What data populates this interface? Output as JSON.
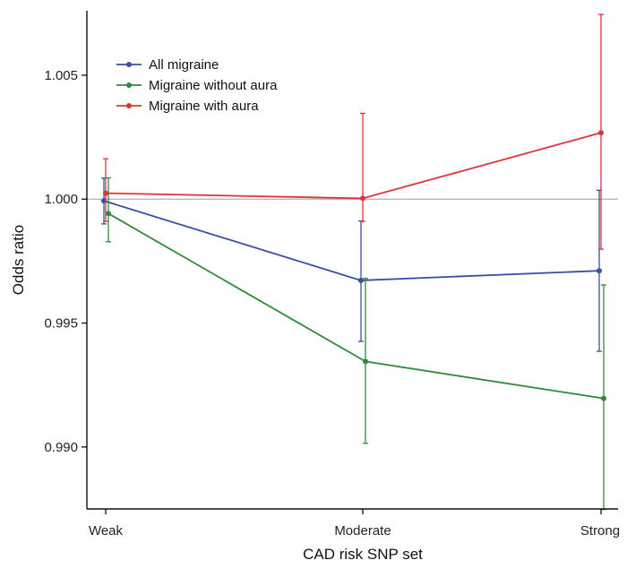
{
  "chart_data": {
    "type": "line",
    "title": "",
    "xlabel": "CAD risk SNP set",
    "ylabel": "Odds ratio",
    "categories": [
      "Weak",
      "Moderate",
      "Strong"
    ],
    "ylim": [
      0.9875,
      1.0076
    ],
    "yticks": [
      0.99,
      0.995,
      1.0,
      1.005
    ],
    "ytick_labels": [
      "0.990",
      "0.995",
      "1.000",
      "1.005"
    ],
    "reference_line": 1.0,
    "grid": false,
    "legend_position": "top-left",
    "series": [
      {
        "name": "All migraine",
        "color": "#3b4ea6",
        "values": [
          0.99993,
          0.99672,
          0.99711
        ],
        "ci_low": [
          0.999,
          0.99426,
          0.99386
        ],
        "ci_high": [
          1.00085,
          0.99912,
          1.00036
        ]
      },
      {
        "name": "Migraine without aura",
        "color": "#2e8b3a",
        "values": [
          0.99942,
          0.99345,
          0.99196
        ],
        "ci_low": [
          0.99828,
          0.99015,
          0.98748
        ],
        "ci_high": [
          1.00086,
          0.9968,
          0.99654
        ]
      },
      {
        "name": "Migraine with aura",
        "color": "#e0343c",
        "values": [
          1.00024,
          1.00003,
          1.00268
        ],
        "ci_low": [
          0.9991,
          0.9991,
          0.99798
        ],
        "ci_high": [
          1.00163,
          1.00346,
          1.00745
        ]
      }
    ]
  }
}
